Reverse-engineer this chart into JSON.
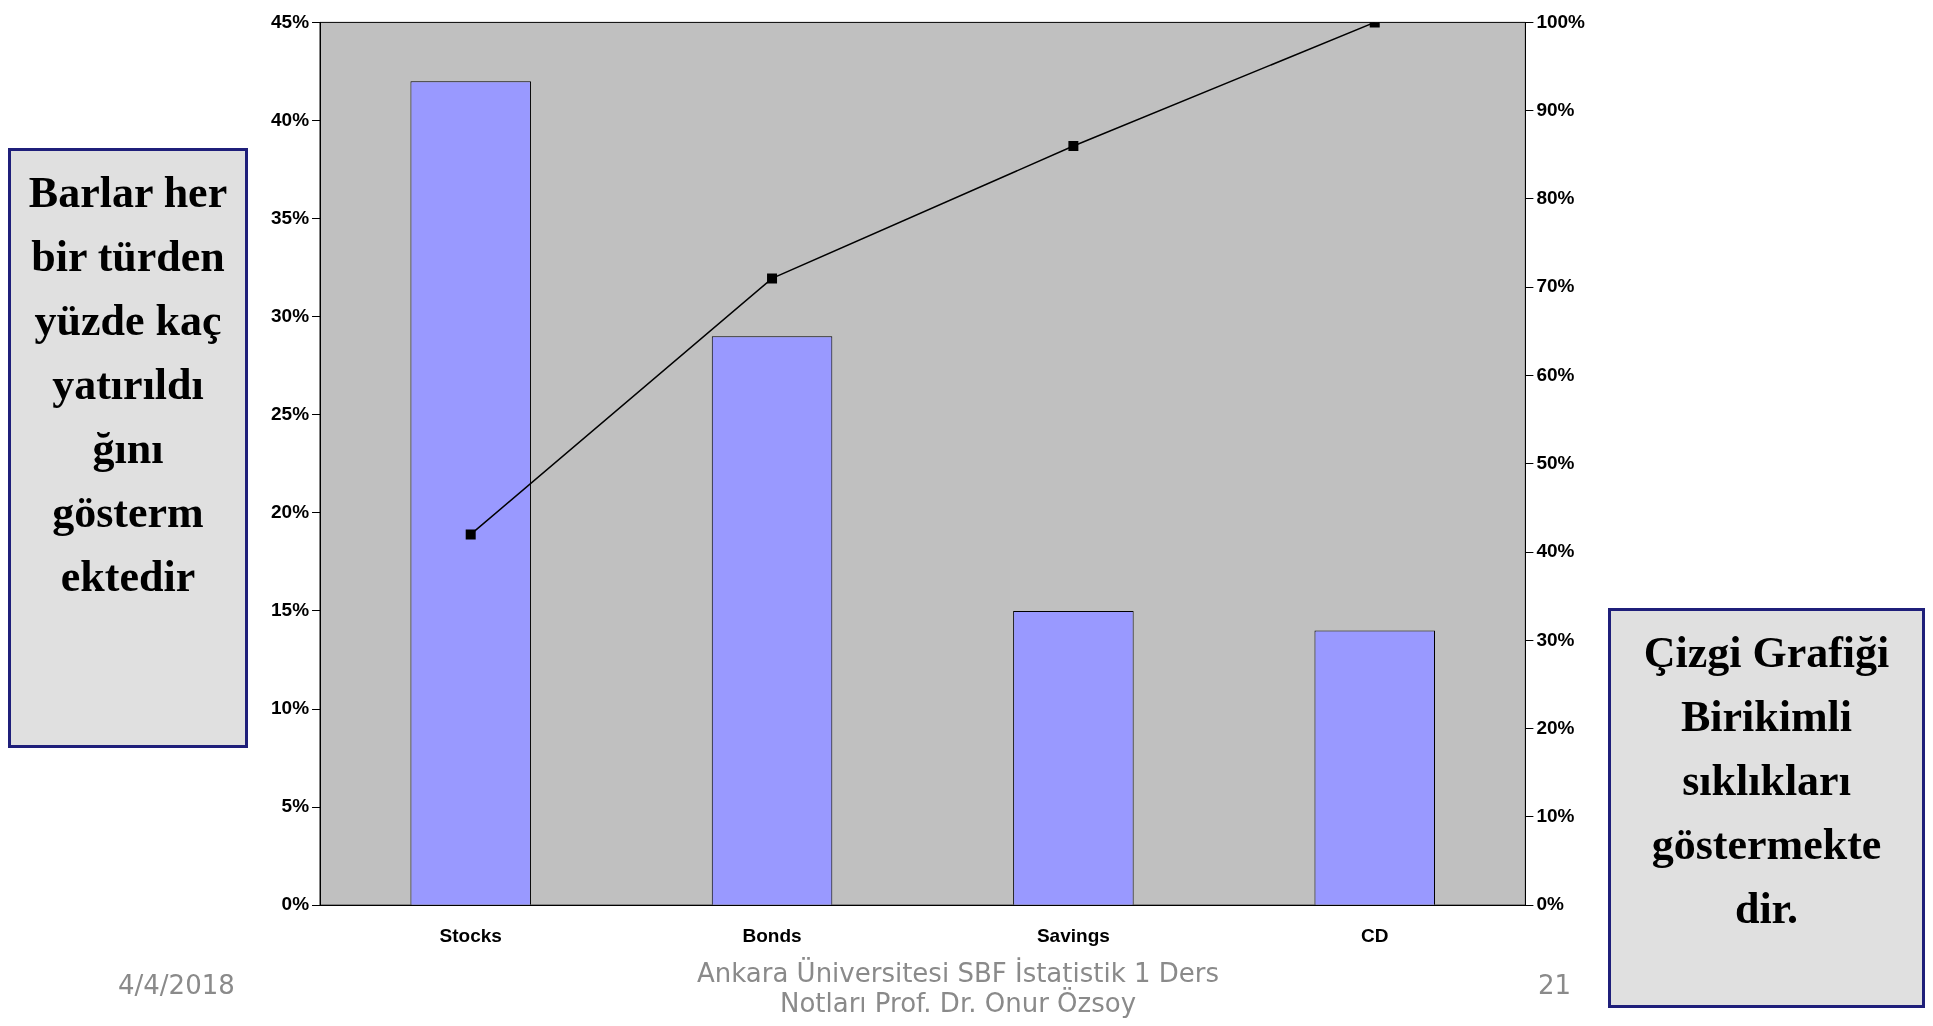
{
  "chart_data": {
    "type": "bar",
    "categories": [
      "Stocks",
      "Bonds",
      "Savings",
      "CD"
    ],
    "series": [
      {
        "color": "#9999ff",
        "values": [
          42,
          29,
          15,
          14
        ]
      },
      {
        "type": "line",
        "axis": "y2",
        "color": "#000000",
        "marker": "square",
        "values": [
          42,
          71,
          86,
          100
        ]
      }
    ],
    "ylim": [
      0,
      45
    ],
    "yticks": [
      {
        "value": 0,
        "label": "0%"
      },
      {
        "value": 5,
        "label": "5%"
      },
      {
        "value": 10,
        "label": "10%"
      },
      {
        "value": 15,
        "label": "15%"
      },
      {
        "value": 20,
        "label": "20%"
      },
      {
        "value": 25,
        "label": "25%"
      },
      {
        "value": 30,
        "label": "30%"
      },
      {
        "value": 35,
        "label": "35%"
      },
      {
        "value": 40,
        "label": "40%"
      },
      {
        "value": 45,
        "label": "45%"
      }
    ],
    "y2lim": [
      0,
      100
    ],
    "y2ticks": [
      {
        "value": 0,
        "label": "0%"
      },
      {
        "value": 10,
        "label": "10%"
      },
      {
        "value": 20,
        "label": "20%"
      },
      {
        "value": 30,
        "label": "30%"
      },
      {
        "value": 40,
        "label": "40%"
      },
      {
        "value": 50,
        "label": "50%"
      },
      {
        "value": 60,
        "label": "60%"
      },
      {
        "value": 70,
        "label": "70%"
      },
      {
        "value": 80,
        "label": "80%"
      },
      {
        "value": 90,
        "label": "90%"
      },
      {
        "value": 100,
        "label": "100%"
      }
    ],
    "grid": false,
    "legend": false,
    "annotations": [
      "Barlar her bir türden yüzde kaç yatırıldı ğını gösterm ektedir",
      "Çizgi Grafiği Birikimli sıklıkları göstermekte dir.",
      "4/4/2018",
      "Ankara Üniversitesi SBF İstatistik 1 Ders Notları Prof. Dr. Onur Özsoy",
      "21"
    ]
  }
}
